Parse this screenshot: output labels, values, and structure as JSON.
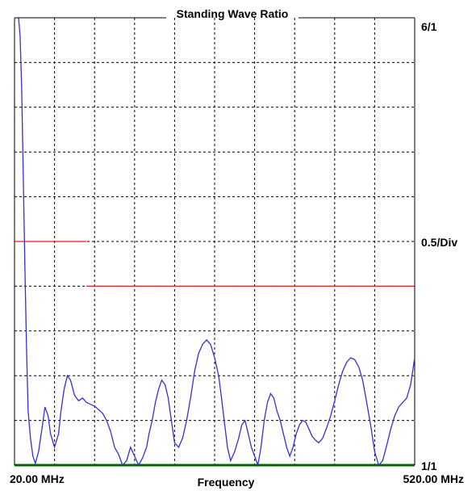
{
  "chart_data": {
    "type": "line",
    "title": "Standing Wave Ratio",
    "xlabel": "Frequency",
    "x_start_label": "20.00 MHz",
    "x_end_label": "520.00 MHz",
    "y_top_label": "6/1",
    "y_bottom_label": "1/1",
    "y_div_label": "0.5/Div",
    "xlim": [
      20,
      520
    ],
    "ylim": [
      1,
      6
    ],
    "x_divisions": 10,
    "y_divisions": 10,
    "grid": true,
    "colors": {
      "trace": "#3333cc",
      "limit": "#dd2222",
      "baseline": "#006600",
      "axis": "#000000"
    },
    "limit_lines": [
      {
        "x_start": 20,
        "x_end": 110,
        "y": 3.5
      },
      {
        "x_start": 110,
        "x_end": 520,
        "y": 3.0
      }
    ],
    "series": [
      {
        "x": [
          25,
          27,
          29,
          31,
          33,
          35,
          37,
          40,
          43,
          46,
          50,
          55,
          58,
          62,
          65,
          70,
          75,
          78,
          82,
          86,
          90,
          95,
          100,
          105,
          110,
          115,
          120,
          125,
          130,
          135,
          140,
          145,
          150,
          155,
          160,
          165,
          170,
          175,
          180,
          185,
          188,
          192,
          196,
          200,
          204,
          208,
          212,
          216,
          220,
          225,
          230,
          235,
          240,
          245,
          250,
          255,
          260,
          265,
          270,
          275,
          278,
          282,
          286,
          290,
          295,
          300,
          304,
          308,
          312,
          316,
          320,
          324,
          328,
          332,
          336,
          340,
          344,
          348,
          352,
          356,
          360,
          364,
          368,
          372,
          376,
          380,
          384,
          388,
          392,
          396,
          400,
          405,
          410,
          415,
          420,
          425,
          430,
          435,
          440,
          445,
          450,
          455,
          460,
          465,
          470,
          475,
          480,
          485,
          490,
          495,
          500,
          505,
          510,
          515,
          520
        ],
        "y": [
          6.0,
          5.8,
          5.2,
          4.2,
          3.2,
          2.3,
          1.6,
          1.3,
          1.1,
          1.02,
          1.15,
          1.45,
          1.65,
          1.55,
          1.35,
          1.2,
          1.35,
          1.6,
          1.85,
          2.0,
          1.95,
          1.78,
          1.72,
          1.75,
          1.7,
          1.68,
          1.66,
          1.62,
          1.58,
          1.5,
          1.38,
          1.2,
          1.12,
          1.0,
          1.05,
          1.2,
          1.1,
          1.0,
          1.08,
          1.2,
          1.35,
          1.5,
          1.7,
          1.85,
          1.95,
          1.9,
          1.75,
          1.5,
          1.25,
          1.2,
          1.3,
          1.5,
          1.75,
          2.05,
          2.25,
          2.35,
          2.4,
          2.35,
          2.2,
          2.0,
          1.8,
          1.5,
          1.2,
          1.05,
          1.15,
          1.3,
          1.45,
          1.5,
          1.35,
          1.2,
          1.1,
          1.0,
          1.2,
          1.5,
          1.7,
          1.8,
          1.75,
          1.6,
          1.5,
          1.35,
          1.2,
          1.1,
          1.2,
          1.35,
          1.45,
          1.5,
          1.48,
          1.4,
          1.32,
          1.28,
          1.25,
          1.3,
          1.42,
          1.55,
          1.72,
          1.9,
          2.05,
          2.15,
          2.2,
          2.18,
          2.1,
          1.95,
          1.7,
          1.45,
          1.15,
          0.98,
          1.05,
          1.22,
          1.4,
          1.55,
          1.65,
          1.7,
          1.75,
          1.9,
          2.2
        ]
      }
    ]
  }
}
